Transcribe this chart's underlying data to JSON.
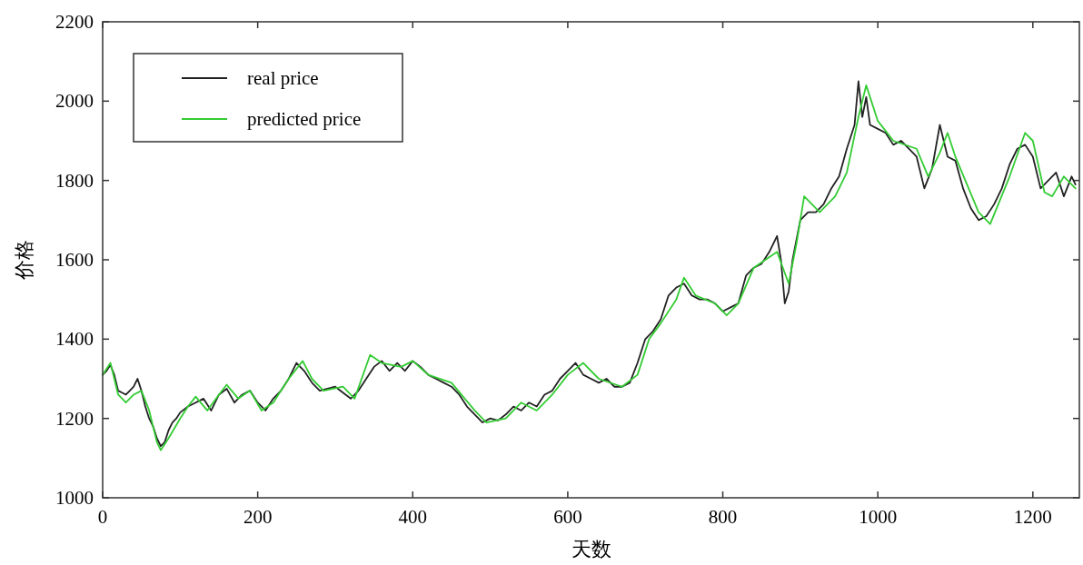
{
  "chart_data": {
    "type": "line",
    "xlabel": "天数",
    "ylabel": "价格",
    "xlim": [
      0,
      1260
    ],
    "ylim": [
      1000,
      2200
    ],
    "xticks": [
      0,
      200,
      400,
      600,
      800,
      1000,
      1200
    ],
    "yticks": [
      1000,
      1200,
      1400,
      1600,
      1800,
      2000,
      2200
    ],
    "grid": false,
    "legend": "top left",
    "line_style": "solid",
    "series": [
      {
        "name": "real price",
        "color": "#222222",
        "x": [
          0,
          5,
          10,
          15,
          20,
          25,
          30,
          35,
          40,
          45,
          50,
          55,
          60,
          65,
          70,
          75,
          80,
          85,
          90,
          95,
          100,
          110,
          120,
          130,
          140,
          150,
          160,
          170,
          180,
          190,
          200,
          210,
          220,
          230,
          240,
          250,
          260,
          270,
          280,
          300,
          310,
          320,
          330,
          340,
          350,
          360,
          370,
          380,
          390,
          400,
          410,
          420,
          430,
          440,
          450,
          460,
          470,
          480,
          490,
          500,
          510,
          520,
          530,
          540,
          550,
          560,
          570,
          580,
          590,
          600,
          610,
          620,
          630,
          640,
          650,
          660,
          670,
          680,
          690,
          700,
          710,
          720,
          730,
          740,
          750,
          760,
          770,
          780,
          790,
          800,
          810,
          820,
          830,
          840,
          850,
          860,
          870,
          875,
          880,
          885,
          890,
          900,
          910,
          920,
          930,
          940,
          950,
          960,
          970,
          975,
          980,
          985,
          990,
          1000,
          1010,
          1020,
          1030,
          1040,
          1050,
          1060,
          1070,
          1080,
          1090,
          1100,
          1110,
          1120,
          1130,
          1140,
          1150,
          1160,
          1170,
          1180,
          1190,
          1200,
          1210,
          1220,
          1230,
          1240,
          1250,
          1255
        ],
        "values": [
          1310,
          1320,
          1335,
          1310,
          1270,
          1265,
          1260,
          1270,
          1280,
          1300,
          1270,
          1230,
          1200,
          1180,
          1150,
          1130,
          1140,
          1170,
          1190,
          1200,
          1215,
          1230,
          1240,
          1250,
          1220,
          1260,
          1275,
          1240,
          1260,
          1270,
          1240,
          1220,
          1250,
          1270,
          1300,
          1340,
          1320,
          1290,
          1270,
          1280,
          1265,
          1250,
          1270,
          1300,
          1330,
          1345,
          1320,
          1340,
          1320,
          1345,
          1330,
          1310,
          1300,
          1290,
          1280,
          1260,
          1230,
          1210,
          1190,
          1200,
          1195,
          1210,
          1230,
          1220,
          1240,
          1230,
          1260,
          1270,
          1300,
          1320,
          1340,
          1310,
          1300,
          1290,
          1300,
          1280,
          1280,
          1290,
          1340,
          1400,
          1420,
          1450,
          1510,
          1530,
          1540,
          1510,
          1500,
          1500,
          1490,
          1470,
          1480,
          1490,
          1560,
          1580,
          1590,
          1620,
          1660,
          1600,
          1490,
          1520,
          1600,
          1700,
          1720,
          1720,
          1740,
          1780,
          1810,
          1880,
          1940,
          2050,
          1960,
          2010,
          1940,
          1930,
          1920,
          1890,
          1900,
          1880,
          1860,
          1780,
          1830,
          1940,
          1860,
          1850,
          1780,
          1730,
          1700,
          1710,
          1740,
          1780,
          1840,
          1880,
          1890,
          1860,
          1780,
          1800,
          1820,
          1760,
          1810,
          1790
        ]
      },
      {
        "name": "predicted price",
        "color": "#33cc33",
        "x": [
          0,
          10,
          20,
          30,
          40,
          50,
          60,
          70,
          75,
          85,
          100,
          110,
          120,
          135,
          150,
          160,
          175,
          190,
          205,
          220,
          240,
          258,
          270,
          285,
          310,
          325,
          345,
          360,
          385,
          400,
          420,
          450,
          480,
          495,
          520,
          540,
          560,
          580,
          600,
          620,
          640,
          670,
          690,
          705,
          720,
          740,
          750,
          765,
          790,
          805,
          820,
          840,
          855,
          870,
          885,
          895,
          905,
          925,
          945,
          960,
          975,
          985,
          1000,
          1020,
          1050,
          1065,
          1080,
          1090,
          1100,
          1130,
          1145,
          1170,
          1190,
          1200,
          1215,
          1225,
          1240,
          1255
        ],
        "values": [
          1310,
          1340,
          1260,
          1240,
          1260,
          1270,
          1220,
          1140,
          1120,
          1150,
          1200,
          1230,
          1255,
          1220,
          1260,
          1285,
          1250,
          1270,
          1220,
          1240,
          1300,
          1345,
          1300,
          1270,
          1280,
          1250,
          1360,
          1340,
          1330,
          1345,
          1310,
          1290,
          1220,
          1190,
          1200,
          1240,
          1220,
          1260,
          1310,
          1340,
          1300,
          1280,
          1310,
          1400,
          1440,
          1500,
          1555,
          1510,
          1490,
          1460,
          1490,
          1580,
          1600,
          1620,
          1540,
          1640,
          1760,
          1720,
          1760,
          1820,
          1960,
          2040,
          1950,
          1900,
          1880,
          1810,
          1870,
          1920,
          1860,
          1720,
          1690,
          1810,
          1920,
          1900,
          1770,
          1760,
          1810,
          1780
        ]
      }
    ]
  }
}
